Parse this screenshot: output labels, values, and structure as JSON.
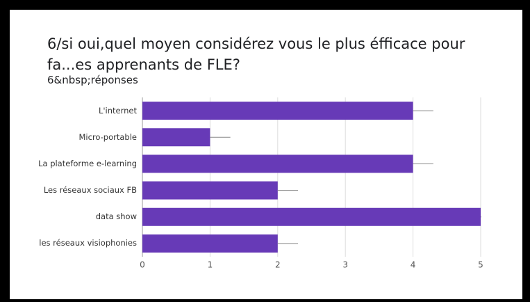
{
  "chart_data": {
    "type": "bar",
    "orientation": "horizontal",
    "title": "6/si oui,quel moyen considérez vous le plus éfficace pour fa...es apprenants de FLE?",
    "subtitle": "6&nbsp;réponses",
    "categories": [
      "L'internet",
      "Micro-portable",
      "La plateforme e-learning",
      "Les réseaux sociaux FB",
      "data show",
      "les réseaux visiophonies"
    ],
    "values": [
      4,
      1,
      4,
      2,
      5,
      2
    ],
    "errors": [
      0.3,
      0.3,
      0.3,
      0.3,
      0.3,
      0.3
    ],
    "color": "#673ab7",
    "xlim": [
      0,
      5
    ],
    "xticks": [
      0,
      1,
      2,
      3,
      4,
      5
    ],
    "grid": true
  }
}
